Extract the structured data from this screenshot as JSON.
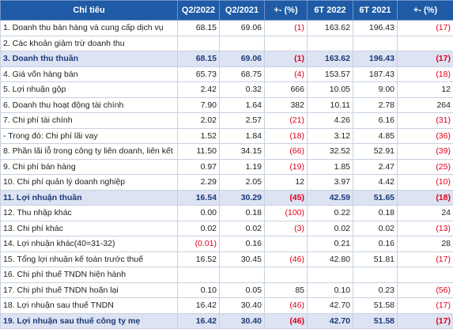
{
  "table": {
    "headers": [
      "Chỉ tiêu",
      "Q2/2022",
      "Q2/2021",
      "+- (%)",
      "6T 2022",
      "6T 2021",
      "+- (%)"
    ],
    "rows": [
      {
        "cells": [
          "1. Doanh thu bán hàng và cung cấp dịch vụ",
          "68.15",
          "69.06",
          "(1)",
          "163.62",
          "196.43",
          "(17)"
        ],
        "highlight": false
      },
      {
        "cells": [
          "2. Các khoản giảm trừ doanh thu",
          "",
          "",
          "",
          "",
          "",
          ""
        ],
        "highlight": false
      },
      {
        "cells": [
          "3. Doanh thu thuần",
          "68.15",
          "69.06",
          "(1)",
          "163.62",
          "196.43",
          "(17)"
        ],
        "highlight": true
      },
      {
        "cells": [
          "4. Giá vốn hàng bán",
          "65.73",
          "68.75",
          "(4)",
          "153.57",
          "187.43",
          "(18)"
        ],
        "highlight": false
      },
      {
        "cells": [
          "5. Lợi nhuận gộp",
          "2.42",
          "0.32",
          "666",
          "10.05",
          "9.00",
          "12"
        ],
        "highlight": false
      },
      {
        "cells": [
          "6. Doanh thu hoạt động tài chính",
          "7.90",
          "1.64",
          "382",
          "10.11",
          "2.78",
          "264"
        ],
        "highlight": false
      },
      {
        "cells": [
          "7. Chi phí tài chính",
          "2.02",
          "2.57",
          "(21)",
          "4.26",
          "6.16",
          "(31)"
        ],
        "highlight": false
      },
      {
        "cells": [
          "- Trong đó: Chi phí lãi vay",
          "1.52",
          "1.84",
          "(18)",
          "3.12",
          "4.85",
          "(36)"
        ],
        "highlight": false
      },
      {
        "cells": [
          "8. Phần lãi lỗ trong công ty liên doanh, liên kết",
          "11.50",
          "34.15",
          "(66)",
          "32.52",
          "52.91",
          "(39)"
        ],
        "highlight": false
      },
      {
        "cells": [
          "9. Chi phí bán hàng",
          "0.97",
          "1.19",
          "(19)",
          "1.85",
          "2.47",
          "(25)"
        ],
        "highlight": false
      },
      {
        "cells": [
          "10. Chi phí quản lý doanh nghiệp",
          "2.29",
          "2.05",
          "12",
          "3.97",
          "4.42",
          "(10)"
        ],
        "highlight": false
      },
      {
        "cells": [
          "11. Lợi nhuận thuần",
          "16.54",
          "30.29",
          "(45)",
          "42.59",
          "51.65",
          "(18)"
        ],
        "highlight": true
      },
      {
        "cells": [
          "12. Thu nhập khác",
          "0.00",
          "0.18",
          "(100)",
          "0.22",
          "0.18",
          "24"
        ],
        "highlight": false
      },
      {
        "cells": [
          "13. Chi phí khác",
          "0.02",
          "0.02",
          "(3)",
          "0.02",
          "0.02",
          "(13)"
        ],
        "highlight": false
      },
      {
        "cells": [
          "14. Lợi nhuận khác(40=31-32)",
          "(0.01)",
          "0.16",
          "",
          "0.21",
          "0.16",
          "28"
        ],
        "highlight": false
      },
      {
        "cells": [
          "15. Tổng lợi nhuận kế toán trước thuế",
          "16.52",
          "30.45",
          "(46)",
          "42.80",
          "51.81",
          "(17)"
        ],
        "highlight": false
      },
      {
        "cells": [
          "16. Chi phí thuế TNDN hiện hành",
          "",
          "",
          "",
          "",
          "",
          ""
        ],
        "highlight": false
      },
      {
        "cells": [
          "17. Chi phí thuế TNDN hoãn lại",
          "0.10",
          "0.05",
          "85",
          "0.10",
          "0.23",
          "(56)"
        ],
        "highlight": false
      },
      {
        "cells": [
          "18. Lợi nhuận sau thuế TNDN",
          "16.42",
          "30.40",
          "(46)",
          "42.70",
          "51.58",
          "(17)"
        ],
        "highlight": false
      },
      {
        "cells": [
          "19. Lợi nhuận sau thuế công ty mẹ",
          "16.42",
          "30.40",
          "(46)",
          "42.70",
          "51.58",
          "(17)"
        ],
        "highlight": true
      }
    ]
  }
}
